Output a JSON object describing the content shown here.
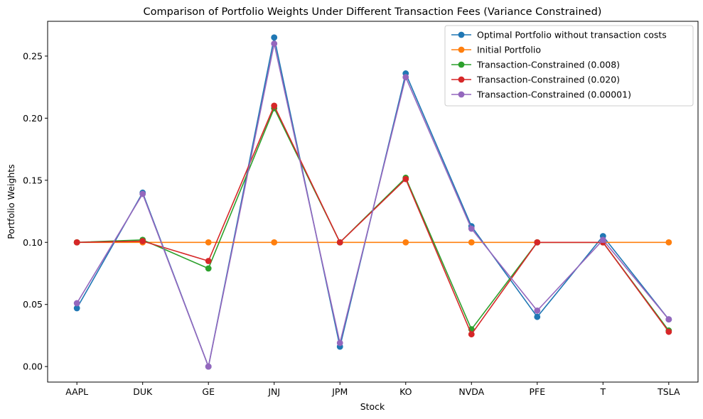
{
  "chart_data": {
    "type": "line",
    "title": "Comparison of Portfolio Weights Under Different Transaction Fees (Variance Constrained)",
    "xlabel": "Stock",
    "ylabel": "Portfolio Weights",
    "categories": [
      "AAPL",
      "DUK",
      "GE",
      "JNJ",
      "JPM",
      "KO",
      "NVDA",
      "PFE",
      "T",
      "TSLA"
    ],
    "ylim": [
      -0.0125,
      0.278
    ],
    "yticks": [
      0.0,
      0.05,
      0.1,
      0.15,
      0.2,
      0.25
    ],
    "ytick_labels": [
      "0.00",
      "0.05",
      "0.10",
      "0.15",
      "0.20",
      "0.25"
    ],
    "grid": false,
    "legend_position": "top-right",
    "marker": "circle",
    "series": [
      {
        "name": "Optimal Portfolio without transaction costs",
        "color": "#1f77b4",
        "values": [
          0.047,
          0.14,
          0.0,
          0.265,
          0.016,
          0.236,
          0.113,
          0.04,
          0.105,
          0.038
        ]
      },
      {
        "name": "Initial Portfolio",
        "color": "#ff7f0e",
        "values": [
          0.1,
          0.1,
          0.1,
          0.1,
          0.1,
          0.1,
          0.1,
          0.1,
          0.1,
          0.1
        ]
      },
      {
        "name": "Transaction-Constrained (0.008)",
        "color": "#2ca02c",
        "values": [
          0.1,
          0.102,
          0.079,
          0.208,
          0.1,
          0.152,
          0.03,
          0.1,
          0.1,
          0.029
        ]
      },
      {
        "name": "Transaction-Constrained (0.020)",
        "color": "#d62728",
        "values": [
          0.1,
          0.101,
          0.085,
          0.21,
          0.1,
          0.151,
          0.026,
          0.1,
          0.1,
          0.028
        ]
      },
      {
        "name": "Transaction-Constrained (0.00001)",
        "color": "#9467bd",
        "values": [
          0.051,
          0.139,
          0.0,
          0.26,
          0.019,
          0.233,
          0.111,
          0.045,
          0.102,
          0.038
        ]
      }
    ]
  }
}
